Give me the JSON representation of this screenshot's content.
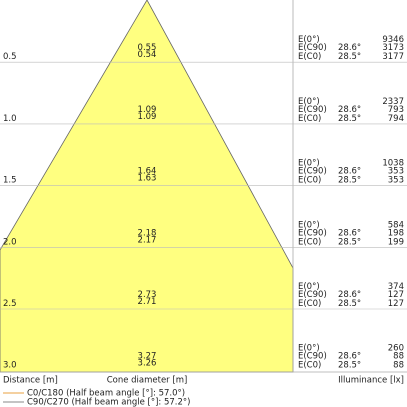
{
  "rows": [
    {
      "distance": "0.5",
      "diameter_1": "0.55",
      "diameter_2": "0.54",
      "e0_label": "E(0°)",
      "e0": "9346",
      "ec90_label": "E(C90)",
      "ec90_angle": "28.6°",
      "ec90": "3173",
      "ec0_label": "E(C0)",
      "ec0_angle": "28.5°",
      "ec0": "3177"
    },
    {
      "distance": "1.0",
      "diameter_1": "1.09",
      "diameter_2": "1.09",
      "e0_label": "E(0°)",
      "e0": "2337",
      "ec90_label": "E(C90)",
      "ec90_angle": "28.6°",
      "ec90": "793",
      "ec0_label": "E(C0)",
      "ec0_angle": "28.5°",
      "ec0": "794"
    },
    {
      "distance": "1.5",
      "diameter_1": "1.64",
      "diameter_2": "1.63",
      "e0_label": "E(0°)",
      "e0": "1038",
      "ec90_label": "E(C90)",
      "ec90_angle": "28.6°",
      "ec90": "353",
      "ec0_label": "E(C0)",
      "ec0_angle": "28.5°",
      "ec0": "353"
    },
    {
      "distance": "2.0",
      "diameter_1": "2.18",
      "diameter_2": "2.17",
      "e0_label": "E(0°)",
      "e0": "584",
      "ec90_label": "E(C90)",
      "ec90_angle": "28.6°",
      "ec90": "198",
      "ec0_label": "E(C0)",
      "ec0_angle": "28.5°",
      "ec0": "199"
    },
    {
      "distance": "2.5",
      "diameter_1": "2.73",
      "diameter_2": "2.71",
      "e0_label": "E(0°)",
      "e0": "374",
      "ec90_label": "E(C90)",
      "ec90_angle": "28.6°",
      "ec90": "127",
      "ec0_label": "E(C0)",
      "ec0_angle": "28.5°",
      "ec0": "127"
    },
    {
      "distance": "3.0",
      "diameter_1": "3.27",
      "diameter_2": "3.26",
      "e0_label": "E(0°)",
      "e0": "260",
      "ec90_label": "E(C90)",
      "ec90_angle": "28.6°",
      "ec90": "88",
      "ec0_label": "E(C0)",
      "ec0_angle": "28.5°",
      "ec0": "88"
    }
  ],
  "footer": {
    "distance_label": "Distance [m]",
    "diameter_label": "Cone diameter [m]",
    "illuminance_label": "Illuminance [lx]"
  },
  "legend": [
    "C0/C180 (Half beam angle [°]: 57.0°)",
    "C90/C270 (Half beam angle [°]: 57.2°)"
  ]
}
